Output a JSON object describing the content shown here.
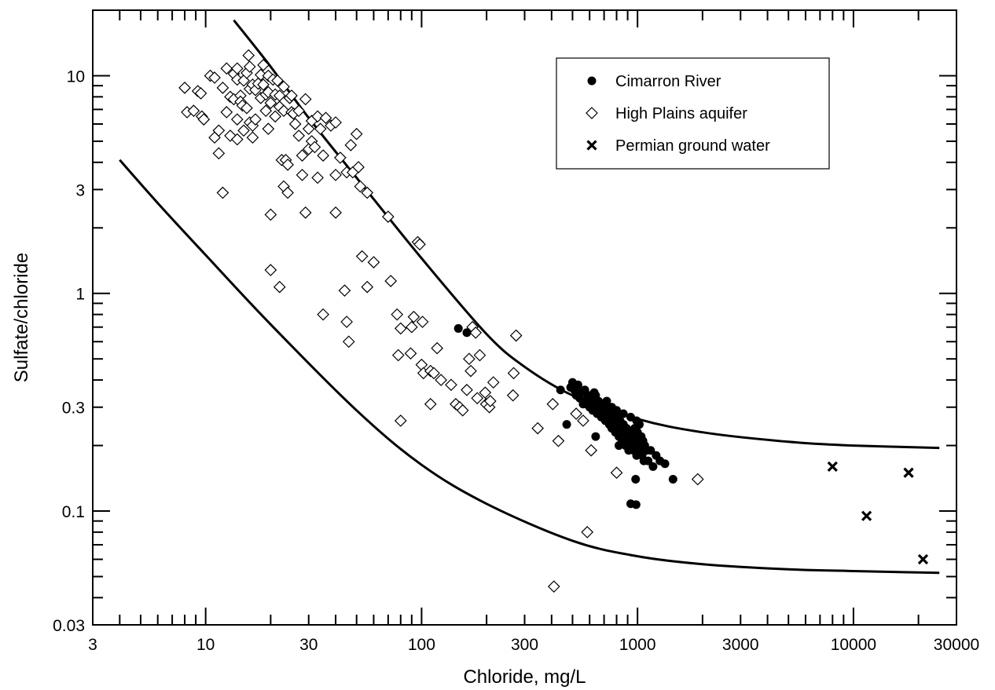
{
  "chart_data": {
    "type": "scatter",
    "title": "",
    "xlabel": "Chloride, mg/L",
    "ylabel": "Sulfate/chloride",
    "x_scale": "log",
    "y_scale": "log",
    "xlim": [
      3,
      30000
    ],
    "ylim": [
      0.03,
      20
    ],
    "x_ticks": [
      {
        "value": 3,
        "label": "3"
      },
      {
        "value": 10,
        "label": "10"
      },
      {
        "value": 30,
        "label": "30"
      },
      {
        "value": 100,
        "label": "100"
      },
      {
        "value": 300,
        "label": "300"
      },
      {
        "value": 1000,
        "label": "1000"
      },
      {
        "value": 3000,
        "label": "3000"
      },
      {
        "value": 10000,
        "label": "10000"
      },
      {
        "value": 30000,
        "label": "30000"
      }
    ],
    "y_ticks": [
      {
        "value": 0.03,
        "label": "0.03"
      },
      {
        "value": 0.1,
        "label": "0.1"
      },
      {
        "value": 0.3,
        "label": "0.3"
      },
      {
        "value": 1,
        "label": "1"
      },
      {
        "value": 3,
        "label": "3"
      },
      {
        "value": 10,
        "label": "10"
      }
    ],
    "grid": false,
    "legend_position": "top-right",
    "series": [
      {
        "name": "Cimarron River",
        "marker": "filled-circle",
        "color": "#000000",
        "points": [
          [
            148,
            0.69
          ],
          [
            162,
            0.66
          ],
          [
            440,
            0.36
          ],
          [
            470,
            0.25
          ],
          [
            490,
            0.37
          ],
          [
            500,
            0.39
          ],
          [
            510,
            0.36
          ],
          [
            520,
            0.34
          ],
          [
            530,
            0.38
          ],
          [
            540,
            0.33
          ],
          [
            550,
            0.35
          ],
          [
            560,
            0.32
          ],
          [
            570,
            0.36
          ],
          [
            580,
            0.31
          ],
          [
            590,
            0.34
          ],
          [
            600,
            0.3
          ],
          [
            610,
            0.33
          ],
          [
            620,
            0.29
          ],
          [
            630,
            0.35
          ],
          [
            640,
            0.31
          ],
          [
            650,
            0.28
          ],
          [
            660,
            0.32
          ],
          [
            670,
            0.3
          ],
          [
            680,
            0.27
          ],
          [
            690,
            0.29
          ],
          [
            700,
            0.31
          ],
          [
            710,
            0.26
          ],
          [
            720,
            0.28
          ],
          [
            730,
            0.3
          ],
          [
            740,
            0.25
          ],
          [
            750,
            0.27
          ],
          [
            760,
            0.24
          ],
          [
            770,
            0.29
          ],
          [
            780,
            0.26
          ],
          [
            790,
            0.23
          ],
          [
            800,
            0.27
          ],
          [
            810,
            0.25
          ],
          [
            820,
            0.22
          ],
          [
            830,
            0.26
          ],
          [
            840,
            0.24
          ],
          [
            850,
            0.21
          ],
          [
            860,
            0.25
          ],
          [
            870,
            0.23
          ],
          [
            880,
            0.2
          ],
          [
            890,
            0.24
          ],
          [
            900,
            0.22
          ],
          [
            910,
            0.19
          ],
          [
            920,
            0.23
          ],
          [
            930,
            0.21
          ],
          [
            940,
            0.2
          ],
          [
            950,
            0.22
          ],
          [
            960,
            0.19
          ],
          [
            970,
            0.24
          ],
          [
            980,
            0.21
          ],
          [
            990,
            0.18
          ],
          [
            1000,
            0.23
          ],
          [
            1010,
            0.2
          ],
          [
            1020,
            0.25
          ],
          [
            1030,
            0.19
          ],
          [
            1040,
            0.22
          ],
          [
            1050,
            0.18
          ],
          [
            1060,
            0.21
          ],
          [
            1070,
            0.17
          ],
          [
            1080,
            0.2
          ],
          [
            1100,
            0.19
          ],
          [
            1120,
            0.17
          ],
          [
            1150,
            0.19
          ],
          [
            1180,
            0.16
          ],
          [
            1220,
            0.18
          ],
          [
            1270,
            0.17
          ],
          [
            560,
            0.31
          ],
          [
            600,
            0.33
          ],
          [
            640,
            0.34
          ],
          [
            680,
            0.31
          ],
          [
            720,
            0.32
          ],
          [
            760,
            0.3
          ],
          [
            800,
            0.29
          ],
          [
            860,
            0.28
          ],
          [
            930,
            0.27
          ],
          [
            990,
            0.26
          ],
          [
            980,
            0.14
          ],
          [
            930,
            0.108
          ],
          [
            985,
            0.107
          ],
          [
            820,
            0.2
          ],
          [
            640,
            0.22
          ],
          [
            1460,
            0.14
          ],
          [
            1340,
            0.165
          ]
        ]
      },
      {
        "name": "High Plains aquifer",
        "marker": "open-diamond",
        "color": "#000000",
        "points": [
          [
            8,
            8.8
          ],
          [
            8.2,
            6.8
          ],
          [
            8.8,
            6.9
          ],
          [
            9.2,
            8.5
          ],
          [
            9.5,
            8.3
          ],
          [
            9.6,
            6.5
          ],
          [
            9.8,
            6.3
          ],
          [
            10.5,
            10
          ],
          [
            11,
            9.8
          ],
          [
            11,
            5.2
          ],
          [
            11.5,
            5.6
          ],
          [
            11.5,
            4.4
          ],
          [
            12,
            8.8
          ],
          [
            12,
            2.9
          ],
          [
            12.5,
            10.8
          ],
          [
            12.5,
            6.8
          ],
          [
            13,
            8
          ],
          [
            13,
            5.3
          ],
          [
            13.5,
            10.2
          ],
          [
            13.5,
            7.8
          ],
          [
            14,
            10.8
          ],
          [
            14,
            9.6
          ],
          [
            14,
            6.3
          ],
          [
            14,
            5.1
          ],
          [
            14.5,
            8.1
          ],
          [
            14.5,
            7.6
          ],
          [
            14.8,
            7.3
          ],
          [
            15,
            9.5
          ],
          [
            15,
            5.6
          ],
          [
            15.5,
            10.3
          ],
          [
            15.5,
            7.1
          ],
          [
            15.8,
            12.4
          ],
          [
            16,
            11
          ],
          [
            16,
            8.7
          ],
          [
            16,
            6.1
          ],
          [
            16.5,
            9.1
          ],
          [
            16.5,
            5.9
          ],
          [
            16.5,
            5.2
          ],
          [
            17,
            8.6
          ],
          [
            17,
            6.3
          ],
          [
            17.5,
            9.2
          ],
          [
            18,
            10.1
          ],
          [
            18,
            7.9
          ],
          [
            18.5,
            11.2
          ],
          [
            18.5,
            9.1
          ],
          [
            19,
            8.2
          ],
          [
            19,
            6.9
          ],
          [
            19.5,
            10
          ],
          [
            19.5,
            8.4
          ],
          [
            19.5,
            5.7
          ],
          [
            20,
            7.5
          ],
          [
            20,
            2.3
          ],
          [
            20.5,
            9.6
          ],
          [
            21,
            8.2
          ],
          [
            21,
            6.5
          ],
          [
            21.5,
            9.5
          ],
          [
            22,
            8.1
          ],
          [
            22,
            7.2
          ],
          [
            22.5,
            4.1
          ],
          [
            23,
            8.9
          ],
          [
            23,
            6.9
          ],
          [
            23,
            3.1
          ],
          [
            23.5,
            4.1
          ],
          [
            24,
            3.9
          ],
          [
            24,
            2.9
          ],
          [
            24.5,
            7.9
          ],
          [
            25,
            8.1
          ],
          [
            25,
            6.8
          ],
          [
            25.5,
            6.7
          ],
          [
            26,
            6
          ],
          [
            27,
            6.9
          ],
          [
            27,
            5.3
          ],
          [
            28,
            4.3
          ],
          [
            28,
            3.5
          ],
          [
            29,
            7.8
          ],
          [
            29,
            2.35
          ],
          [
            30,
            5.7
          ],
          [
            30,
            4.6
          ],
          [
            31,
            6.2
          ],
          [
            31,
            5
          ],
          [
            32,
            4.7
          ],
          [
            33,
            6.5
          ],
          [
            33,
            3.4
          ],
          [
            34,
            5.7
          ],
          [
            35,
            4.3
          ],
          [
            36,
            6.4
          ],
          [
            38,
            5.9
          ],
          [
            40,
            6.1
          ],
          [
            40,
            3.5
          ],
          [
            40,
            2.35
          ],
          [
            42,
            4.2
          ],
          [
            45,
            3.6
          ],
          [
            47,
            4.8
          ],
          [
            48,
            3.6
          ],
          [
            50,
            5.4
          ],
          [
            51,
            3.8
          ],
          [
            52,
            3.1
          ],
          [
            56,
            2.9
          ],
          [
            20,
            1.28
          ],
          [
            22,
            1.07
          ],
          [
            35,
            0.8
          ],
          [
            44,
            1.03
          ],
          [
            45,
            0.74
          ],
          [
            46,
            0.6
          ],
          [
            53,
            1.48
          ],
          [
            56,
            1.07
          ],
          [
            60,
            1.39
          ],
          [
            70,
            2.25
          ],
          [
            72,
            1.14
          ],
          [
            77,
            0.8
          ],
          [
            78,
            0.52
          ],
          [
            80,
            0.69
          ],
          [
            89,
            0.53
          ],
          [
            90,
            0.7
          ],
          [
            92,
            0.78
          ],
          [
            96,
            1.72
          ],
          [
            98,
            1.68
          ],
          [
            100,
            0.47
          ],
          [
            101,
            0.74
          ],
          [
            102,
            0.43
          ],
          [
            110,
            0.44
          ],
          [
            114,
            0.43
          ],
          [
            118,
            0.56
          ],
          [
            123,
            0.4
          ],
          [
            137,
            0.38
          ],
          [
            144,
            0.31
          ],
          [
            150,
            0.3
          ],
          [
            155,
            0.29
          ],
          [
            162,
            0.36
          ],
          [
            166,
            0.5
          ],
          [
            169,
            0.44
          ],
          [
            172,
            0.7
          ],
          [
            178,
            0.66
          ],
          [
            181,
            0.33
          ],
          [
            186,
            0.52
          ],
          [
            197,
            0.35
          ],
          [
            199,
            0.31
          ],
          [
            206,
            0.3
          ],
          [
            208,
            0.32
          ],
          [
            215,
            0.39
          ],
          [
            265,
            0.34
          ],
          [
            267,
            0.43
          ],
          [
            274,
            0.64
          ],
          [
            345,
            0.24
          ],
          [
            80,
            0.26
          ],
          [
            110,
            0.31
          ],
          [
            405,
            0.31
          ],
          [
            410,
            0.045
          ],
          [
            430,
            0.21
          ],
          [
            520,
            0.28
          ],
          [
            560,
            0.26
          ],
          [
            585,
            0.08
          ],
          [
            610,
            0.19
          ],
          [
            800,
            0.15
          ],
          [
            1900,
            0.14
          ]
        ]
      },
      {
        "name": "Permian ground water",
        "marker": "x",
        "color": "#000000",
        "points": [
          [
            8000,
            0.16
          ],
          [
            11500,
            0.095
          ],
          [
            18000,
            0.15
          ],
          [
            21000,
            0.06
          ]
        ]
      }
    ],
    "envelope_curves": [
      {
        "label": "",
        "points": [
          [
            13.5,
            18
          ],
          [
            20,
            11
          ],
          [
            30,
            6.4
          ],
          [
            50,
            3.4
          ],
          [
            100,
            1.45
          ],
          [
            200,
            0.65
          ],
          [
            300,
            0.46
          ],
          [
            500,
            0.34
          ],
          [
            1000,
            0.265
          ],
          [
            2000,
            0.23
          ],
          [
            5000,
            0.208
          ],
          [
            10000,
            0.2
          ],
          [
            25000,
            0.195
          ]
        ]
      },
      {
        "label": "",
        "points": [
          [
            4,
            4.1
          ],
          [
            6,
            2.6
          ],
          [
            10,
            1.5
          ],
          [
            20,
            0.72
          ],
          [
            50,
            0.29
          ],
          [
            100,
            0.163
          ],
          [
            200,
            0.108
          ],
          [
            500,
            0.073
          ],
          [
            1000,
            0.062
          ],
          [
            2000,
            0.057
          ],
          [
            5000,
            0.054
          ],
          [
            10000,
            0.053
          ],
          [
            25000,
            0.052
          ]
        ]
      }
    ]
  }
}
